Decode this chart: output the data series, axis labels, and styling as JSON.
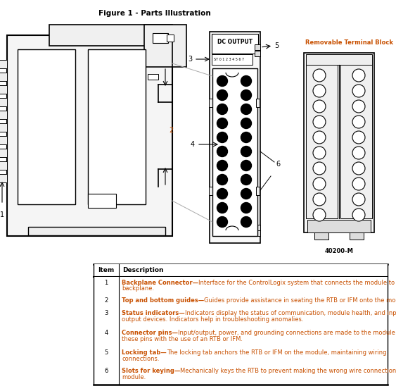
{
  "title": "Figure 1 - Parts Illustration",
  "title_fontsize": 7.5,
  "title_color": "#000000",
  "bg_color": "#ffffff",
  "table_rows": [
    [
      "1",
      "Backplane Connector—",
      "Interface for the ControlLogix system that connects the module to the\nbackplane."
    ],
    [
      "2",
      "Top and bottom guides—",
      "Guides provide assistance in seating the RTB or IFM onto the module."
    ],
    [
      "3",
      "Status indicators—",
      "Indicators display the status of communication, module health, and input/\noutput devices. Indicators help in troubleshooting anomalies."
    ],
    [
      "4",
      "Connector pins—",
      "Input/output, power, and grounding connections are made to the module through\nthese pins with the use of an RTB or IFM."
    ],
    [
      "5",
      "Locking tab—",
      "The locking tab anchors the RTB or IFM on the module, maintaining wiring\nconnections."
    ],
    [
      "6",
      "Slots for keying—",
      "Mechanically keys the RTB to prevent making the wrong wire connections to your\nmodule."
    ]
  ],
  "text_color": "#c85000",
  "part_number": "40200-M",
  "removable_label": "Removable Terminal Block"
}
